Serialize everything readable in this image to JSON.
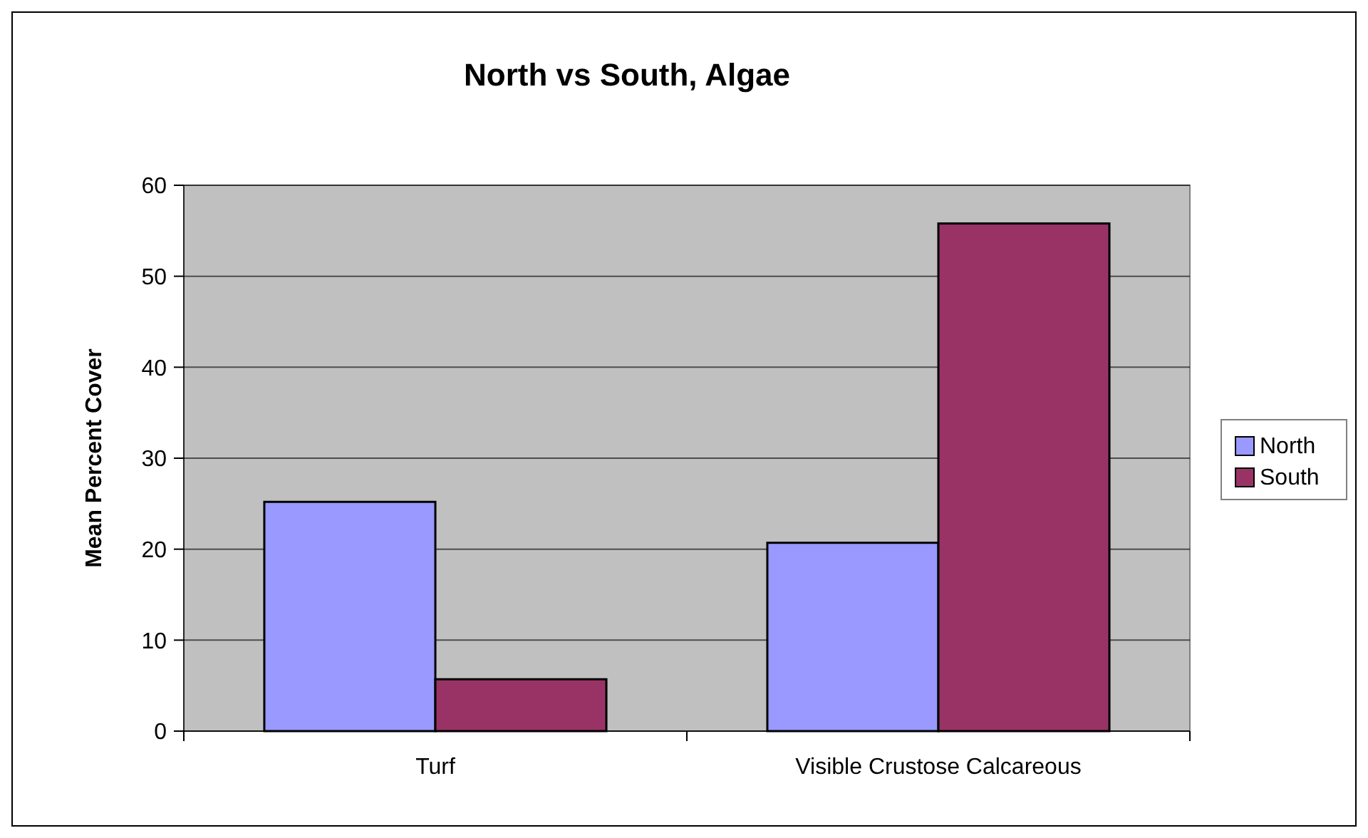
{
  "chart_data": {
    "type": "bar",
    "title": "North vs South, Algae",
    "ylabel": "Mean Percent Cover",
    "categories": [
      "Turf",
      "Visible Crustose Calcareous"
    ],
    "series": [
      {
        "name": "North",
        "color": "#9999ff",
        "values": [
          25.2,
          20.7
        ]
      },
      {
        "name": "South",
        "color": "#993366",
        "values": [
          5.7,
          55.8
        ]
      }
    ],
    "ylim": [
      0,
      60
    ],
    "yticks": [
      0,
      10,
      20,
      30,
      40,
      50,
      60
    ],
    "grid": "y",
    "legend": "right"
  }
}
